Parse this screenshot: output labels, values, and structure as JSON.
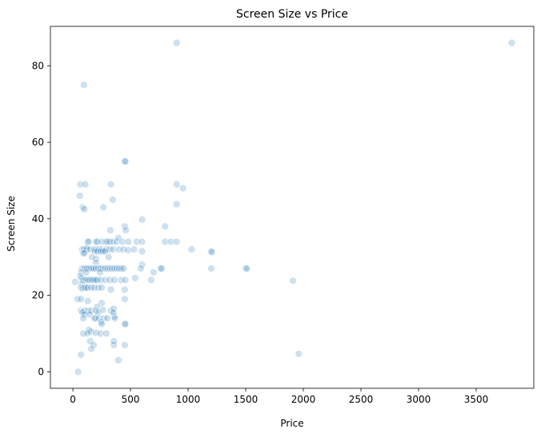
{
  "chart_data": {
    "type": "scatter",
    "title": "Screen Size vs Price",
    "xlabel": "Price",
    "ylabel": "Screen Size",
    "xlim": [
      -195,
      4000
    ],
    "ylim": [
      -4.3,
      90.3
    ],
    "xticks": [
      0,
      500,
      1000,
      1500,
      2000,
      2500,
      3000,
      3500
    ],
    "yticks": [
      0,
      20,
      40,
      60,
      80
    ],
    "grid": false,
    "point_color": "#1f77b4",
    "point_opacity": 0.22,
    "points": [
      [
        45,
        0
      ],
      [
        70,
        4.5
      ],
      [
        395,
        3
      ],
      [
        1960,
        4.7
      ],
      [
        95,
        75
      ],
      [
        900,
        86
      ],
      [
        3810,
        86
      ],
      [
        450,
        55
      ],
      [
        455,
        55
      ],
      [
        65,
        49
      ],
      [
        108,
        49
      ],
      [
        330,
        49
      ],
      [
        900,
        49
      ],
      [
        955,
        48
      ],
      [
        60,
        46
      ],
      [
        345,
        45
      ],
      [
        85,
        43
      ],
      [
        100,
        42.5
      ],
      [
        265,
        43
      ],
      [
        900,
        43.8
      ],
      [
        600,
        39.8
      ],
      [
        450,
        38
      ],
      [
        800,
        38
      ],
      [
        325,
        37
      ],
      [
        460,
        37
      ],
      [
        140,
        34
      ],
      [
        200,
        34
      ],
      [
        210,
        34
      ],
      [
        250,
        34
      ],
      [
        285,
        34
      ],
      [
        300,
        34
      ],
      [
        320,
        34
      ],
      [
        350,
        34
      ],
      [
        380,
        34
      ],
      [
        395,
        35
      ],
      [
        430,
        34
      ],
      [
        480,
        34
      ],
      [
        555,
        34
      ],
      [
        600,
        34
      ],
      [
        800,
        34
      ],
      [
        850,
        34
      ],
      [
        900,
        34
      ],
      [
        130,
        34
      ],
      [
        120,
        32.5
      ],
      [
        80,
        32
      ],
      [
        95,
        32
      ],
      [
        120,
        32
      ],
      [
        150,
        32
      ],
      [
        180,
        32
      ],
      [
        200,
        32
      ],
      [
        225,
        32
      ],
      [
        250,
        32
      ],
      [
        290,
        32
      ],
      [
        320,
        32
      ],
      [
        350,
        32
      ],
      [
        400,
        32
      ],
      [
        440,
        32
      ],
      [
        480,
        31.8
      ],
      [
        530,
        32
      ],
      [
        600,
        31.5
      ],
      [
        1030,
        32
      ],
      [
        1200,
        31.5
      ],
      [
        1205,
        31.3
      ],
      [
        190,
        31.5
      ],
      [
        215,
        31.5
      ],
      [
        240,
        31.5
      ],
      [
        260,
        31.5
      ],
      [
        280,
        31.5
      ],
      [
        90,
        31
      ],
      [
        100,
        31
      ],
      [
        165,
        30
      ],
      [
        310,
        30
      ],
      [
        200,
        29.5
      ],
      [
        200,
        28.5
      ],
      [
        600,
        28
      ],
      [
        590,
        27
      ],
      [
        700,
        26
      ],
      [
        760,
        27
      ],
      [
        770,
        27
      ],
      [
        80,
        27
      ],
      [
        95,
        27
      ],
      [
        110,
        27
      ],
      [
        125,
        27
      ],
      [
        140,
        27
      ],
      [
        155,
        27
      ],
      [
        170,
        27
      ],
      [
        185,
        27
      ],
      [
        200,
        27
      ],
      [
        220,
        27
      ],
      [
        240,
        27
      ],
      [
        260,
        27
      ],
      [
        280,
        27
      ],
      [
        300,
        27
      ],
      [
        320,
        27
      ],
      [
        340,
        27
      ],
      [
        360,
        27
      ],
      [
        380,
        27
      ],
      [
        400,
        27
      ],
      [
        420,
        27
      ],
      [
        440,
        27
      ],
      [
        1200,
        27
      ],
      [
        1500,
        27
      ],
      [
        70,
        26
      ],
      [
        115,
        26
      ],
      [
        235,
        26
      ],
      [
        680,
        24
      ],
      [
        1910,
        23.8
      ],
      [
        65,
        25
      ],
      [
        75,
        24.5
      ],
      [
        90,
        24
      ],
      [
        105,
        24
      ],
      [
        120,
        24
      ],
      [
        135,
        24
      ],
      [
        150,
        24
      ],
      [
        165,
        24
      ],
      [
        180,
        24
      ],
      [
        195,
        24
      ],
      [
        210,
        24
      ],
      [
        240,
        24
      ],
      [
        280,
        24
      ],
      [
        320,
        24
      ],
      [
        360,
        24
      ],
      [
        420,
        24
      ],
      [
        455,
        24
      ],
      [
        540,
        24.5
      ],
      [
        20,
        23.5
      ],
      [
        75,
        23
      ],
      [
        70,
        22
      ],
      [
        85,
        21.8
      ],
      [
        100,
        22
      ],
      [
        115,
        22
      ],
      [
        130,
        22
      ],
      [
        160,
        22
      ],
      [
        185,
        22
      ],
      [
        220,
        22
      ],
      [
        250,
        22
      ],
      [
        330,
        21.5
      ],
      [
        450,
        21.5
      ],
      [
        40,
        19
      ],
      [
        70,
        19
      ],
      [
        450,
        19
      ],
      [
        130,
        18.5
      ],
      [
        250,
        18
      ],
      [
        210,
        17
      ],
      [
        70,
        16
      ],
      [
        100,
        16
      ],
      [
        130,
        16
      ],
      [
        160,
        16
      ],
      [
        200,
        16
      ],
      [
        220,
        15.5
      ],
      [
        260,
        16.2
      ],
      [
        330,
        16
      ],
      [
        355,
        16.5
      ],
      [
        360,
        14.5
      ],
      [
        350,
        15.5
      ],
      [
        85,
        15.5
      ],
      [
        100,
        15
      ],
      [
        145,
        15
      ],
      [
        185,
        14
      ],
      [
        195,
        14
      ],
      [
        225,
        14
      ],
      [
        270,
        14
      ],
      [
        300,
        14
      ],
      [
        365,
        14
      ],
      [
        90,
        14
      ],
      [
        245,
        13
      ],
      [
        250,
        12.5
      ],
      [
        450,
        12.5
      ],
      [
        455,
        12.5
      ],
      [
        140,
        11
      ],
      [
        155,
        10.5
      ],
      [
        200,
        10.2
      ],
      [
        90,
        10
      ],
      [
        125,
        10
      ],
      [
        240,
        10
      ],
      [
        290,
        10
      ],
      [
        150,
        8
      ],
      [
        180,
        7
      ],
      [
        355,
        7
      ],
      [
        355,
        8
      ],
      [
        450,
        7
      ],
      [
        160,
        6
      ],
      [
        1510,
        27
      ]
    ]
  }
}
